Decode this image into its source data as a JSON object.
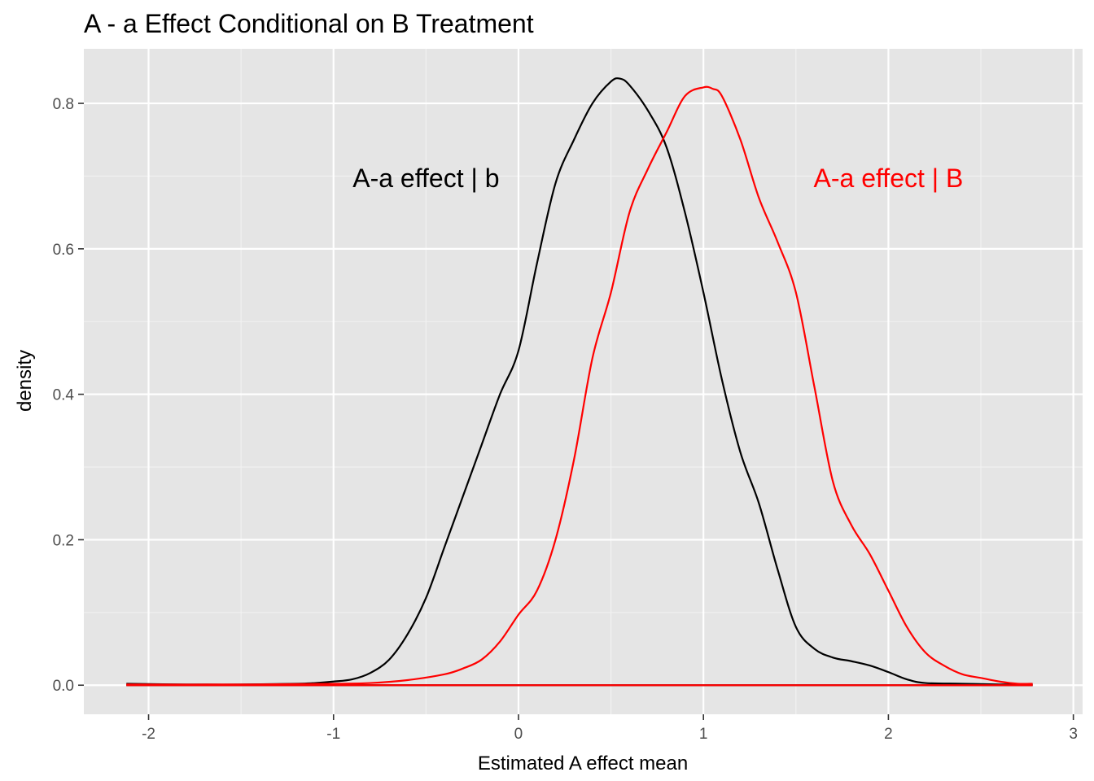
{
  "chart_data": {
    "type": "line",
    "title": "A - a Effect Conditional on B Treatment",
    "xlabel": "Estimated A effect mean",
    "ylabel": "density",
    "xlim": [
      -2.35,
      3.05
    ],
    "ylim": [
      -0.04,
      0.875
    ],
    "x_ticks": [
      -2,
      -1,
      0,
      1,
      2,
      3
    ],
    "x_tick_labels": [
      "-2",
      "-1",
      "0",
      "1",
      "2",
      "3"
    ],
    "y_ticks": [
      0.0,
      0.2,
      0.4,
      0.6,
      0.8
    ],
    "y_tick_labels": [
      "0.0",
      "0.2",
      "0.4",
      "0.6",
      "0.8"
    ],
    "grid": true,
    "panel_background": "#e5e5e5",
    "series": [
      {
        "color": "#000000",
        "x": [
          -2.12,
          -1.8,
          -1.5,
          -1.2,
          -1.1,
          -1.0,
          -0.9,
          -0.8,
          -0.7,
          -0.6,
          -0.5,
          -0.4,
          -0.3,
          -0.2,
          -0.1,
          0.0,
          0.1,
          0.2,
          0.3,
          0.4,
          0.5,
          0.55,
          0.6,
          0.7,
          0.8,
          0.9,
          1.0,
          1.1,
          1.2,
          1.3,
          1.4,
          1.5,
          1.6,
          1.7,
          1.8,
          1.9,
          2.0,
          2.1,
          2.2,
          2.4,
          2.6,
          2.78
        ],
        "y": [
          0.002,
          0.001,
          0.001,
          0.002,
          0.003,
          0.005,
          0.008,
          0.017,
          0.035,
          0.07,
          0.12,
          0.19,
          0.26,
          0.33,
          0.4,
          0.46,
          0.58,
          0.69,
          0.75,
          0.8,
          0.83,
          0.834,
          0.825,
          0.79,
          0.74,
          0.65,
          0.54,
          0.42,
          0.32,
          0.25,
          0.16,
          0.08,
          0.05,
          0.038,
          0.033,
          0.027,
          0.018,
          0.008,
          0.003,
          0.002,
          0.001,
          0.001
        ]
      },
      {
        "color": "#ff0000",
        "x": [
          -2.12,
          -1.5,
          -1.0,
          -0.8,
          -0.6,
          -0.4,
          -0.3,
          -0.2,
          -0.1,
          0.0,
          0.1,
          0.2,
          0.3,
          0.4,
          0.5,
          0.6,
          0.7,
          0.8,
          0.9,
          1.0,
          1.05,
          1.1,
          1.2,
          1.3,
          1.4,
          1.5,
          1.6,
          1.7,
          1.8,
          1.9,
          2.0,
          2.1,
          2.2,
          2.3,
          2.4,
          2.5,
          2.6,
          2.7,
          2.78
        ],
        "y": [
          0.001,
          0.001,
          0.002,
          0.003,
          0.007,
          0.015,
          0.023,
          0.035,
          0.06,
          0.097,
          0.13,
          0.2,
          0.31,
          0.45,
          0.54,
          0.65,
          0.71,
          0.76,
          0.81,
          0.822,
          0.82,
          0.81,
          0.75,
          0.67,
          0.61,
          0.54,
          0.41,
          0.28,
          0.22,
          0.18,
          0.13,
          0.08,
          0.045,
          0.027,
          0.015,
          0.01,
          0.005,
          0.002,
          0.002
        ]
      }
    ],
    "annotations": [
      {
        "text": "A-a effect | b",
        "x": -0.5,
        "y": 0.697,
        "color": "#000000"
      },
      {
        "text": "A-a effect | B",
        "x": 2.0,
        "y": 0.697,
        "color": "#ff0000"
      }
    ]
  }
}
